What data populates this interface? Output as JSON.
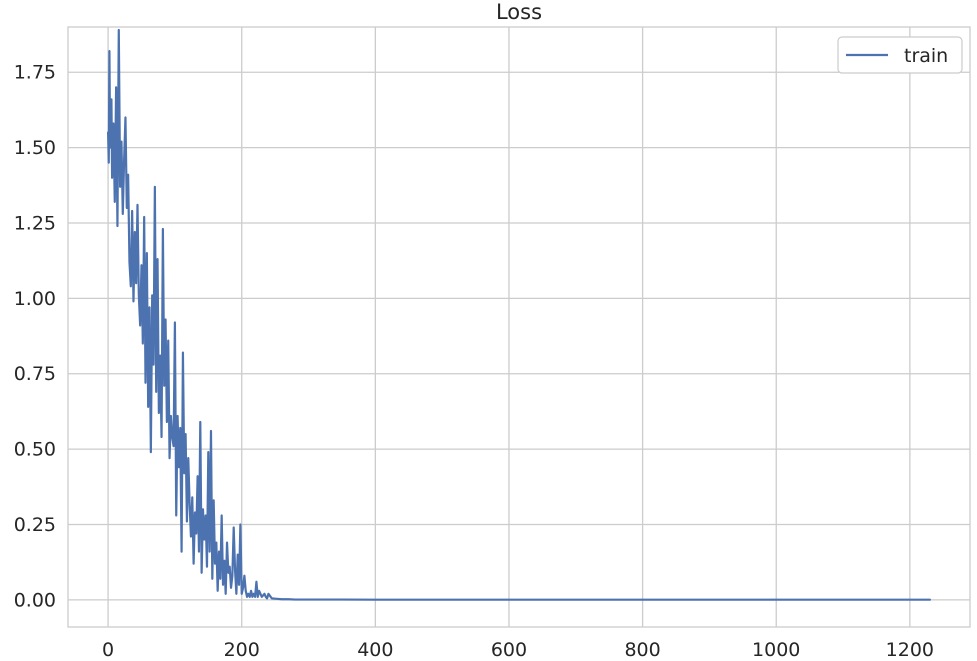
{
  "chart_data": {
    "type": "line",
    "title": "Loss",
    "xlabel": "",
    "ylabel": "",
    "xlim": [
      -60,
      1290
    ],
    "ylim": [
      -0.09,
      1.9
    ],
    "x_ticks": [
      0,
      200,
      400,
      600,
      800,
      1000,
      1200
    ],
    "y_ticks": [
      0.0,
      0.25,
      0.5,
      0.75,
      1.0,
      1.25,
      1.5,
      1.75
    ],
    "x_tick_labels": [
      "0",
      "200",
      "400",
      "600",
      "800",
      "1000",
      "1200"
    ],
    "y_tick_labels": [
      "0.00",
      "0.25",
      "0.50",
      "0.75",
      "1.00",
      "1.25",
      "1.50",
      "1.75"
    ],
    "grid": true,
    "legend_position": "top-right",
    "series": [
      {
        "name": "train",
        "color": "#4c72b0",
        "x": [
          0,
          1,
          2,
          3,
          5,
          6,
          8,
          10,
          12,
          14,
          16,
          18,
          20,
          22,
          24,
          26,
          28,
          30,
          32,
          34,
          36,
          38,
          40,
          42,
          44,
          46,
          48,
          50,
          52,
          54,
          56,
          58,
          60,
          62,
          64,
          66,
          68,
          70,
          72,
          74,
          76,
          78,
          80,
          82,
          84,
          86,
          88,
          90,
          92,
          94,
          96,
          98,
          100,
          102,
          104,
          106,
          108,
          110,
          112,
          114,
          116,
          118,
          120,
          122,
          124,
          126,
          128,
          130,
          132,
          134,
          136,
          138,
          140,
          142,
          144,
          146,
          148,
          150,
          152,
          154,
          156,
          158,
          160,
          162,
          164,
          166,
          168,
          170,
          172,
          174,
          176,
          178,
          180,
          182,
          184,
          186,
          188,
          190,
          192,
          194,
          196,
          198,
          200,
          202,
          204,
          206,
          208,
          210,
          212,
          214,
          216,
          218,
          220,
          222,
          224,
          226,
          228,
          230,
          232,
          234,
          236,
          238,
          240,
          245,
          250,
          255,
          260,
          270,
          280,
          290,
          300,
          350,
          400,
          500,
          600,
          700,
          800,
          900,
          1000,
          1100,
          1230
        ],
        "y": [
          1.55,
          1.45,
          1.82,
          1.5,
          1.66,
          1.4,
          1.58,
          1.32,
          1.7,
          1.24,
          1.89,
          1.37,
          1.52,
          1.28,
          1.46,
          1.6,
          1.3,
          1.41,
          1.12,
          1.04,
          1.29,
          0.99,
          1.22,
          1.05,
          1.31,
          1.01,
          0.91,
          1.11,
          0.85,
          1.27,
          0.72,
          1.15,
          0.64,
          0.97,
          0.49,
          1.01,
          0.78,
          1.37,
          0.69,
          1.13,
          0.62,
          0.81,
          0.54,
          1.23,
          0.71,
          0.93,
          0.59,
          0.86,
          0.47,
          0.61,
          0.54,
          0.51,
          0.92,
          0.28,
          0.61,
          0.44,
          0.57,
          0.16,
          0.82,
          0.42,
          0.55,
          0.26,
          0.47,
          0.32,
          0.21,
          0.34,
          0.12,
          0.29,
          0.22,
          0.41,
          0.16,
          0.59,
          0.09,
          0.3,
          0.2,
          0.28,
          0.11,
          0.49,
          0.16,
          0.56,
          0.07,
          0.33,
          0.12,
          0.19,
          0.03,
          0.16,
          0.07,
          0.28,
          0.05,
          0.13,
          0.02,
          0.19,
          0.09,
          0.11,
          0.04,
          0.08,
          0.24,
          0.1,
          0.02,
          0.15,
          0.05,
          0.25,
          0.02,
          0.04,
          0.08,
          0.03,
          0.01,
          0.02,
          0.01,
          0.03,
          0.01,
          0.02,
          0.01,
          0.06,
          0.01,
          0.03,
          0.02,
          0.01,
          0.015,
          0.02,
          0.01,
          0.005,
          0.02,
          0.005,
          0.004,
          0.003,
          0.002,
          0.002,
          0.001,
          0.001,
          0.001,
          0.001,
          0.0005,
          0.0005,
          0.0005,
          0.0005,
          0.0005,
          0.0005,
          0.0005,
          0.0005,
          0.0005
        ]
      }
    ]
  }
}
